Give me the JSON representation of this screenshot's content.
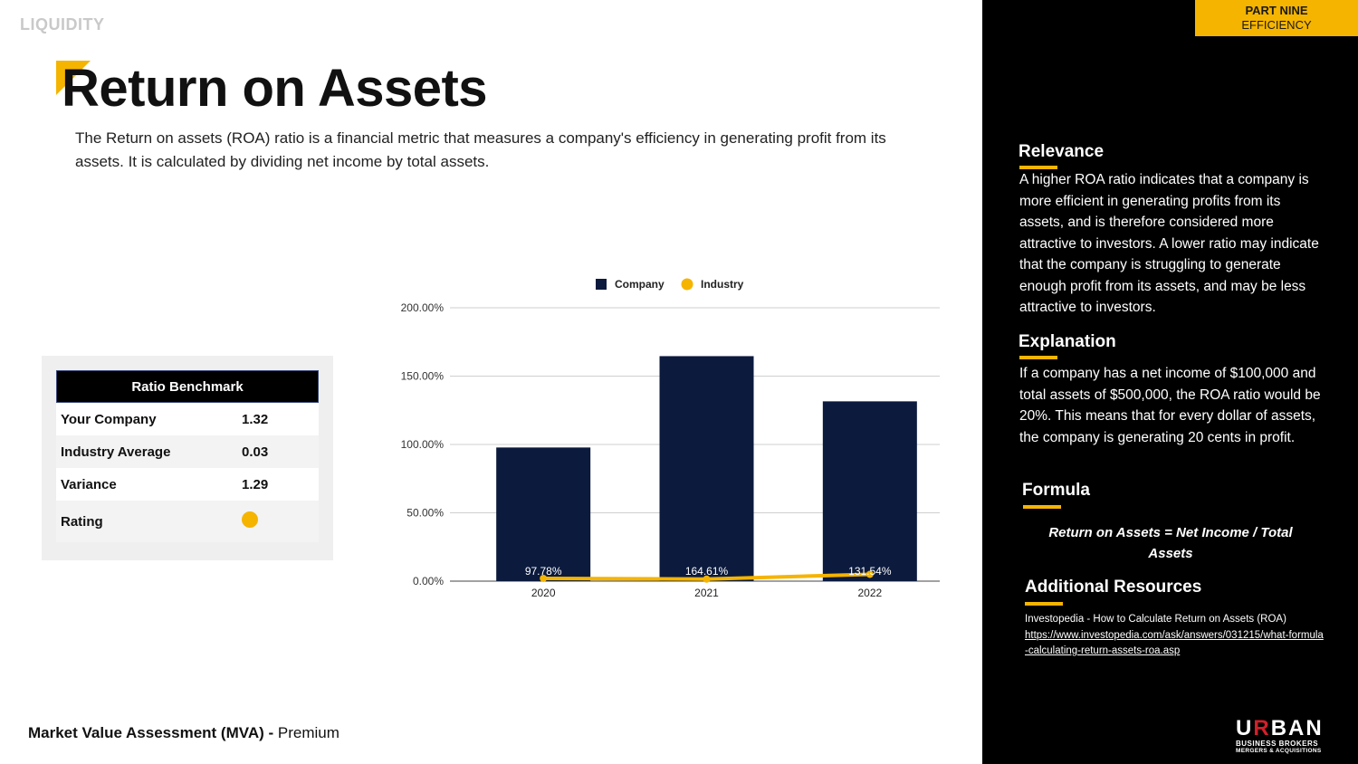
{
  "section_label": "LIQUIDITY",
  "title": "Return on Assets",
  "intro": "The Return on assets (ROA) ratio is a financial metric that measures a company's efficiency in generating profit from its assets. It is calculated by dividing net income by total assets.",
  "benchmark": {
    "title": "Ratio Benchmark",
    "rows": [
      {
        "label": "Your Company",
        "value": "1.32"
      },
      {
        "label": "Industry Average",
        "value": "0.03"
      },
      {
        "label": "Variance",
        "value": "1.29"
      }
    ],
    "rating_label": "Rating",
    "rating_color": "#f5b400"
  },
  "chart_data": {
    "type": "bar",
    "categories": [
      "2020",
      "2021",
      "2022"
    ],
    "series": [
      {
        "name": "Company",
        "kind": "bar",
        "color": "#0b1a3d",
        "values": [
          97.78,
          164.61,
          131.54
        ],
        "labels": [
          "97.78%",
          "164.61%",
          "131.54%"
        ]
      },
      {
        "name": "Industry",
        "kind": "line",
        "color": "#f5b400",
        "values": [
          2,
          1.5,
          5
        ]
      }
    ],
    "ylim": [
      0,
      200
    ],
    "yticks": [
      0,
      50,
      100,
      150,
      200
    ],
    "ytick_labels": [
      "0.00%",
      "50.00%",
      "100.00%",
      "150.00%",
      "200.00%"
    ],
    "legend_position": "top",
    "grid": true
  },
  "panel": {
    "part_tag": {
      "line1": "PART NINE",
      "line2": "EFFICIENCY"
    },
    "relevance": {
      "heading": "Relevance",
      "text": "A higher ROA ratio indicates that a company is more efficient in generating profits from its assets, and is therefore considered more attractive to investors. A lower ratio may indicate that the company is struggling to generate enough profit from its assets, and may be less attractive to investors."
    },
    "explanation": {
      "heading": "Explanation",
      "text": "If a company has a net income of $100,000 and total assets of $500,000, the ROA ratio would be 20%. This means that for every dollar of assets, the company is generating 20 cents in profit."
    },
    "formula": {
      "heading": "Formula",
      "text": "Return on Assets = Net Income / Total Assets"
    },
    "resources": {
      "heading": "Additional Resources",
      "title": "Investopedia - How to Calculate Return on Assets (ROA)",
      "link": "https://www.investopedia.com/ask/answers/031215/what-formula-calculating-return-assets-roa.asp"
    },
    "logo": {
      "main_1": "U",
      "main_r": "R",
      "main_2": "BAN",
      "sub": "BUSINESS BROKERS",
      "sub2": "MERGERS & ACQUISITIONS"
    }
  },
  "footer": {
    "bold": "Market Value Assessment (MVA) -",
    "normal": "Premium"
  }
}
